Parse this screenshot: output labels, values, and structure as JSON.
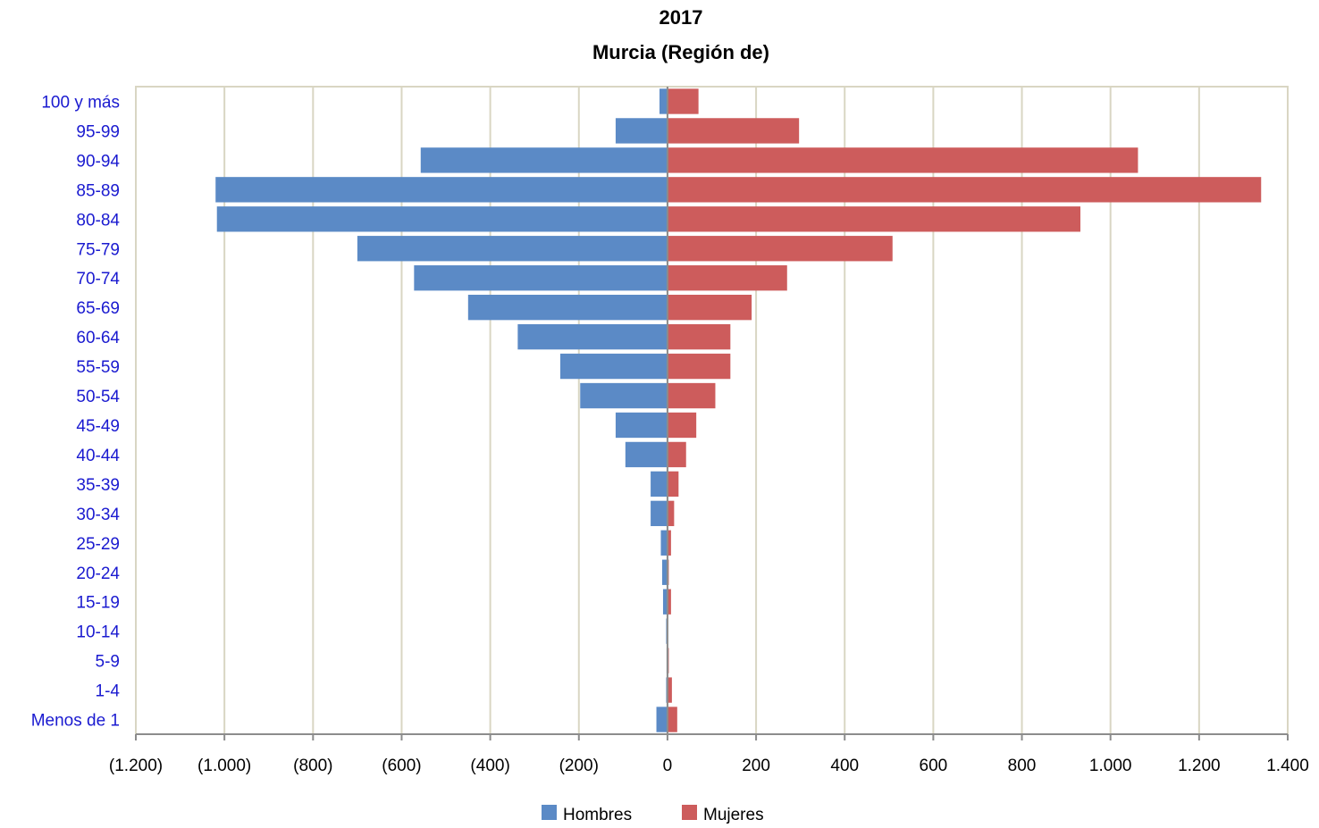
{
  "chart_data": {
    "type": "bar",
    "orientation": "horizontal",
    "title": "2017",
    "subtitle": "Murcia (Región de)",
    "categories": [
      "100 y más",
      "95-99",
      "90-94",
      "85-89",
      "80-84",
      "75-79",
      "70-74",
      "65-69",
      "60-64",
      "55-59",
      "50-54",
      "45-49",
      "40-44",
      "35-39",
      "30-34",
      "25-29",
      "20-24",
      "15-19",
      "10-14",
      "5-9",
      "1-4",
      "Menos de 1"
    ],
    "series": [
      {
        "name": "Hombres",
        "color": "#5b8ac6",
        "values": [
          -18,
          -117,
          -557,
          -1020,
          -1017,
          -700,
          -572,
          -450,
          -338,
          -242,
          -197,
          -117,
          -95,
          -38,
          -38,
          -15,
          -12,
          -10,
          -3,
          -2,
          -3,
          -25
        ]
      },
      {
        "name": "Mujeres",
        "color": "#cd5c5c",
        "values": [
          70,
          297,
          1062,
          1340,
          932,
          508,
          270,
          190,
          142,
          142,
          108,
          65,
          42,
          25,
          15,
          8,
          3,
          8,
          0,
          3,
          10,
          22
        ]
      }
    ],
    "xlim": [
      -1200,
      1400
    ],
    "xticks": [
      -1200,
      -1000,
      -800,
      -600,
      -400,
      -200,
      0,
      200,
      400,
      600,
      800,
      1000,
      1200,
      1400
    ],
    "xtick_labels": [
      "(1.200)",
      "(1.000)",
      "(800)",
      "(600)",
      "(400)",
      "(200)",
      "0",
      "200",
      "400",
      "600",
      "800",
      "1.000",
      "1.200",
      "1.400"
    ],
    "grid": true,
    "legend_position": "bottom"
  }
}
